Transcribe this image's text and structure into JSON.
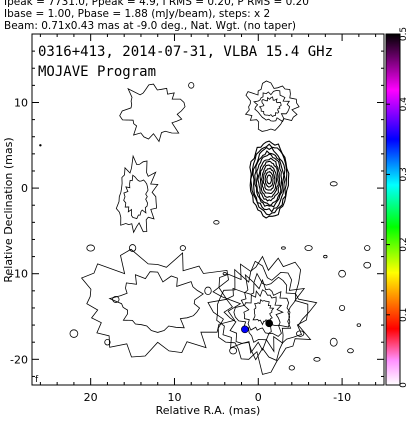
{
  "header": {
    "line1": "Ipeak = 7731.0, Ppeak = 4.9, I RMS = 0.20, P RMS = 0.20",
    "line2": "Ibase = 1.00, Pbase = 1.88 (mJy/beam), steps: x 2",
    "line3": "Beam: 0.71x0.43 mas at -9.0 deg., Nat. Wgt. (no taper)"
  },
  "plot": {
    "title": "0316+413, 2014-07-31, VLBA 15.4 GHz",
    "subtitle": "MOJAVE Program",
    "footer_mark": "f"
  },
  "chart_data": {
    "type": "contour",
    "xlabel": "Relative R.A. (mas)",
    "ylabel": "Relative Declination (mas)",
    "xlim": [
      27,
      -15
    ],
    "ylim": [
      -23,
      18
    ],
    "xticks": [
      20,
      10,
      0,
      -10
    ],
    "yticks": [
      10,
      0,
      -10,
      -20
    ],
    "colorbar": {
      "range": [
        0,
        0.5
      ],
      "ticks": [
        0,
        0.1,
        0.2,
        0.3,
        0.4,
        0.5
      ],
      "colors": [
        "#ffffff",
        "#ff80ff",
        "#ff0000",
        "#ffff00",
        "#00ff00",
        "#00ffff",
        "#0000ff",
        "#ff00ff",
        "#000000"
      ]
    },
    "contours": [
      {
        "name": "core",
        "cx": -1.3,
        "cy": 1.0,
        "rx": 2.3,
        "ry": 4.4,
        "levels": 11
      },
      {
        "name": "northwest-blob",
        "cx": 12.5,
        "cy": 9.0,
        "rx": 3.5,
        "ry": 3.0,
        "levels": 1
      },
      {
        "name": "northeast-blob",
        "cx": -1.5,
        "cy": 9.5,
        "rx": 2.8,
        "ry": 2.5,
        "levels": 3
      },
      {
        "name": "west-middle-blob",
        "cx": 14.5,
        "cy": -1.0,
        "rx": 2.3,
        "ry": 4.0,
        "levels": 2
      },
      {
        "name": "southwest-lobe",
        "cx": 12.0,
        "cy": -13.5,
        "rx": 8.5,
        "ry": 5.5,
        "levels": 2
      },
      {
        "name": "southeast-lobe",
        "cx": -0.5,
        "cy": -14.5,
        "rx": 5.5,
        "ry": 6.0,
        "levels": 6
      }
    ],
    "colored_pixels": [
      {
        "x": 1.6,
        "y": -16.5,
        "color": "#0000ff"
      },
      {
        "x": -1.3,
        "y": -15.8,
        "color": "#000000"
      }
    ]
  }
}
